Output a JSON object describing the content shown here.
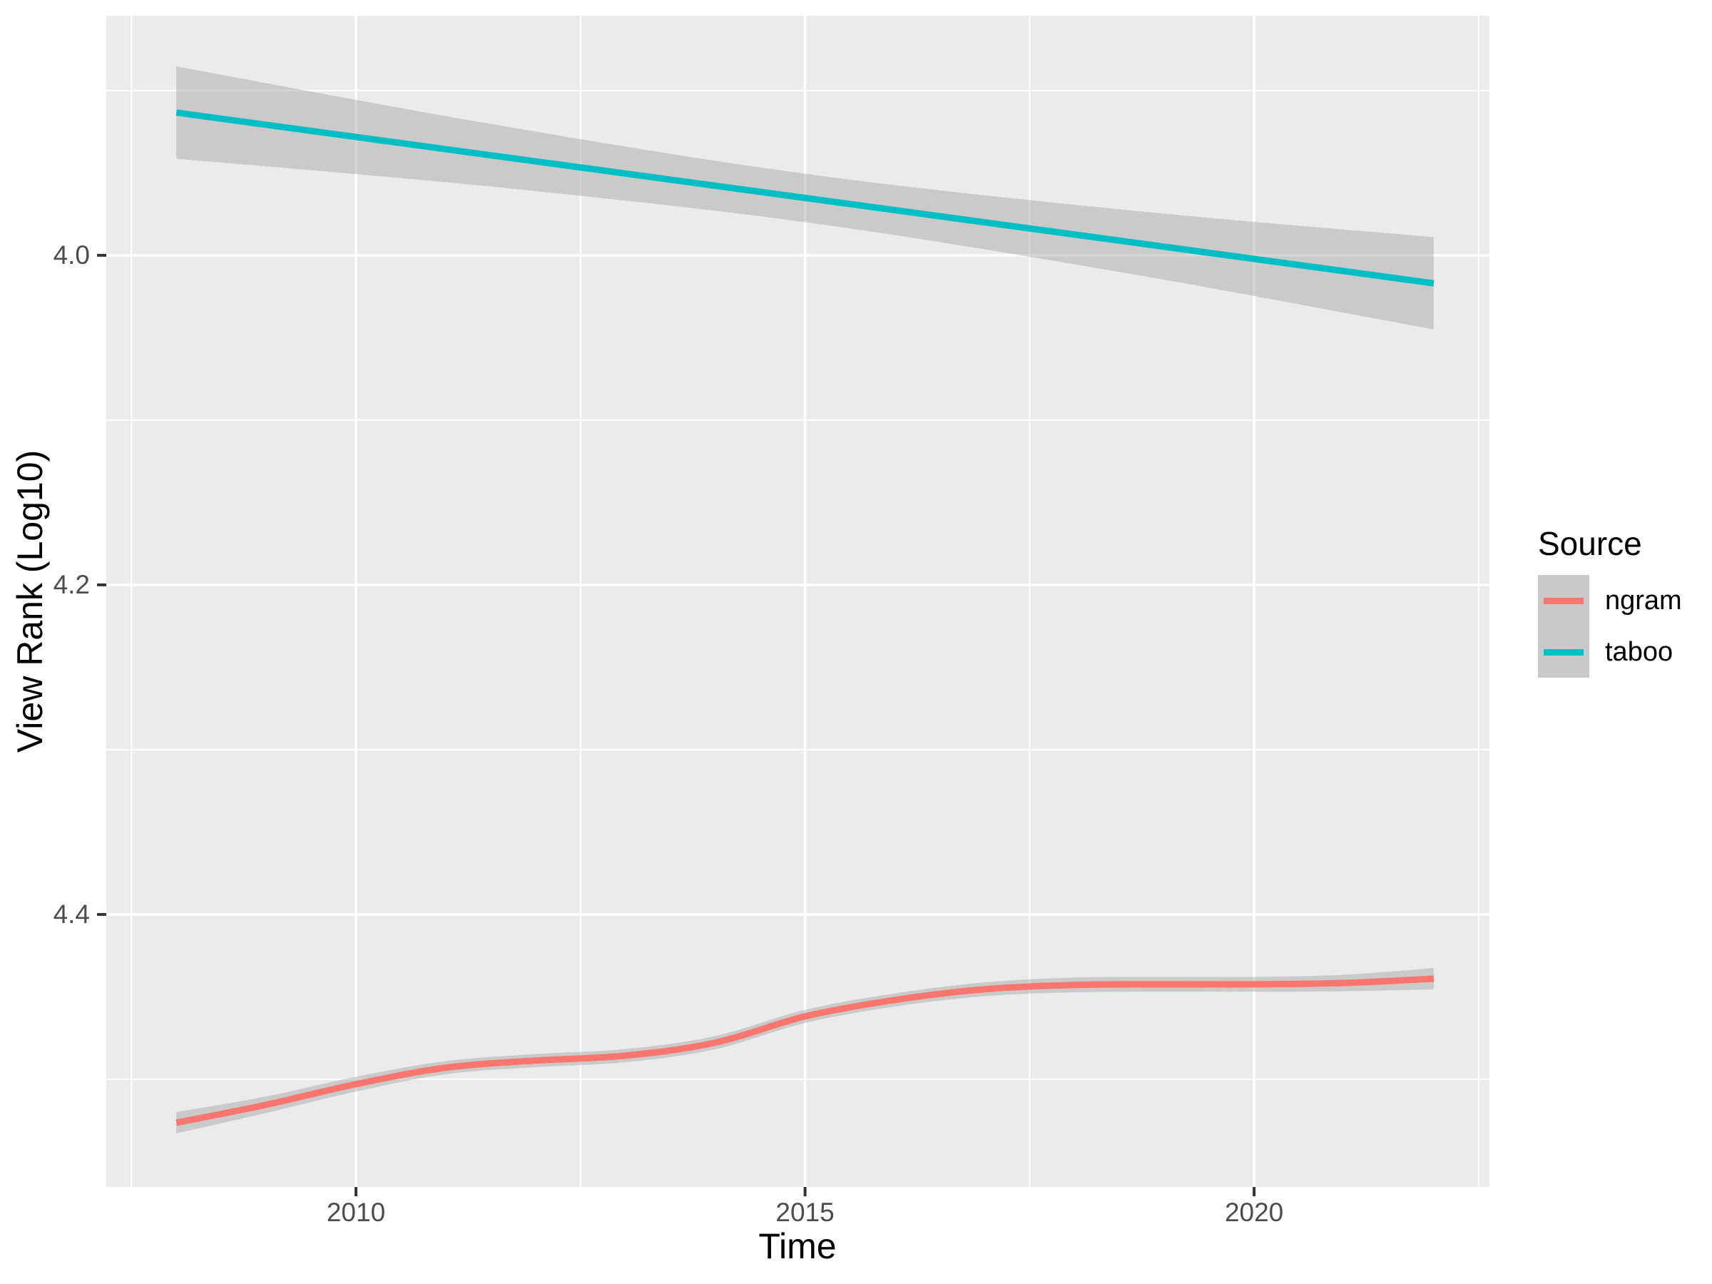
{
  "chart_data": {
    "type": "line",
    "smooth": true,
    "confidence_ribbon": true,
    "x_axis": {
      "label": "Time",
      "domain": [
        2007.22,
        2022.62
      ],
      "ticks": [
        {
          "v": 2010,
          "label": "2010"
        },
        {
          "v": 2015,
          "label": "2015"
        },
        {
          "v": 2020,
          "label": "2020"
        }
      ],
      "minor": [
        2007.5,
        2012.5,
        2017.5,
        2022.5
      ]
    },
    "y_axis": {
      "label": "View Rank (Log10)",
      "reversed": true,
      "domain": [
        3.8546,
        4.5654
      ],
      "ticks": [
        {
          "v": 4.0,
          "label": "4.0"
        },
        {
          "v": 4.2,
          "label": "4.2"
        },
        {
          "v": 4.4,
          "label": "4.4"
        }
      ],
      "minor": [
        3.9,
        4.1,
        4.3,
        4.5
      ]
    },
    "legend": {
      "title": "Source",
      "items": [
        {
          "label": "ngram",
          "color": "#F8766D"
        },
        {
          "label": "taboo",
          "color": "#00BFC4"
        }
      ]
    },
    "series": [
      {
        "name": "ngram",
        "color": "#F8766D",
        "points": [
          {
            "x": 2008,
            "y": 4.5264,
            "lo": 4.5199,
            "hi": 4.5329
          },
          {
            "x": 2009,
            "y": 4.5155,
            "lo": 4.5105,
            "hi": 4.5205
          },
          {
            "x": 2010,
            "y": 4.503,
            "lo": 4.4985,
            "hi": 4.5075
          },
          {
            "x": 2011,
            "y": 4.493,
            "lo": 4.489,
            "hi": 4.497
          },
          {
            "x": 2012,
            "y": 4.4887,
            "lo": 4.4847,
            "hi": 4.4927
          },
          {
            "x": 2013,
            "y": 4.4857,
            "lo": 4.4817,
            "hi": 4.4897
          },
          {
            "x": 2014,
            "y": 4.4778,
            "lo": 4.4738,
            "hi": 4.4818
          },
          {
            "x": 2015,
            "y": 4.4619,
            "lo": 4.4579,
            "hi": 4.4659
          },
          {
            "x": 2016,
            "y": 4.4519,
            "lo": 4.4479,
            "hi": 4.4559
          },
          {
            "x": 2017,
            "y": 4.4454,
            "lo": 4.4412,
            "hi": 4.4496
          },
          {
            "x": 2018,
            "y": 4.4428,
            "lo": 4.4383,
            "hi": 4.4473
          },
          {
            "x": 2019,
            "y": 4.4424,
            "lo": 4.4379,
            "hi": 4.4469
          },
          {
            "x": 2020,
            "y": 4.4424,
            "lo": 4.4379,
            "hi": 4.4469
          },
          {
            "x": 2021,
            "y": 4.4416,
            "lo": 4.4366,
            "hi": 4.4466
          },
          {
            "x": 2022,
            "y": 4.439,
            "lo": 4.4325,
            "hi": 4.4455
          }
        ]
      },
      {
        "name": "taboo",
        "color": "#00BFC4",
        "points": [
          {
            "x": 2008,
            "y": 3.9134,
            "lo": 3.8854,
            "hi": 3.9414
          },
          {
            "x": 2011.5,
            "y": 3.9393,
            "lo": 3.9203,
            "hi": 3.9583
          },
          {
            "x": 2015,
            "y": 3.9652,
            "lo": 3.9505,
            "hi": 3.9799
          },
          {
            "x": 2018.5,
            "y": 3.9911,
            "lo": 3.9721,
            "hi": 4.0101
          },
          {
            "x": 2022,
            "y": 4.017,
            "lo": 3.989,
            "hi": 4.045
          }
        ]
      }
    ],
    "colors": {
      "panel_bg": "#EBEBEB",
      "gridline": "#FFFFFF",
      "ribbon_fill": "#999999",
      "ribbon_alpha": 0.4,
      "tick_text": "#4D4D4D",
      "tick_mark": "#333333",
      "axis_title": "#000000",
      "legend_key_bg": "#C9C9C9"
    }
  }
}
